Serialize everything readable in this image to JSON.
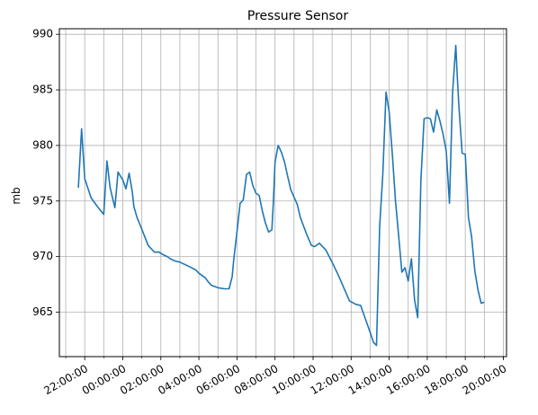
{
  "chart_data": {
    "type": "line",
    "title": "Pressure Sensor",
    "xlabel": "",
    "ylabel": "mb",
    "grid": true,
    "legend": "none",
    "colors": {
      "line": "#1f77b4",
      "grid": "#b0b0b0",
      "axis": "#000000"
    },
    "xlim": [
      "20:40:00",
      "44:10:00"
    ],
    "ylim": [
      961.0,
      990.5
    ],
    "x_ticks": [
      {
        "value": "22:00:00",
        "label": "22:00:00"
      },
      {
        "value": "24:00:00",
        "label": "00:00:00"
      },
      {
        "value": "26:00:00",
        "label": "02:00:00"
      },
      {
        "value": "28:00:00",
        "label": "04:00:00"
      },
      {
        "value": "30:00:00",
        "label": "06:00:00"
      },
      {
        "value": "32:00:00",
        "label": "08:00:00"
      },
      {
        "value": "34:00:00",
        "label": "10:00:00"
      },
      {
        "value": "36:00:00",
        "label": "12:00:00"
      },
      {
        "value": "38:00:00",
        "label": "14:00:00"
      },
      {
        "value": "40:00:00",
        "label": "16:00:00"
      },
      {
        "value": "42:00:00",
        "label": "18:00:00"
      },
      {
        "value": "44:00:00",
        "label": "20:00:00"
      }
    ],
    "y_ticks": [
      965,
      970,
      975,
      980,
      985,
      990
    ],
    "series": [
      {
        "x": [
          "21:40",
          "21:50",
          "22:00",
          "22:20",
          "22:40",
          "23:00",
          "23:10",
          "23:20",
          "23:35",
          "23:45",
          "24:00",
          "24:10",
          "24:20",
          "24:30",
          "24:35",
          "24:45",
          "24:55",
          "25:05",
          "25:20",
          "25:40",
          "25:55",
          "26:05",
          "26:20",
          "26:30",
          "26:45",
          "27:00",
          "27:30",
          "27:50",
          "28:00",
          "28:20",
          "28:30",
          "28:40",
          "29:00",
          "29:20",
          "29:35",
          "29:45",
          "29:50",
          "30:00",
          "30:10",
          "30:20",
          "30:30",
          "30:40",
          "30:50",
          "31:00",
          "31:10",
          "31:20",
          "31:30",
          "31:40",
          "31:50",
          "31:55",
          "32:00",
          "32:10",
          "32:20",
          "32:30",
          "32:40",
          "32:50",
          "33:10",
          "33:20",
          "33:40",
          "33:55",
          "34:05",
          "34:20",
          "34:40",
          "35:00",
          "35:20",
          "35:40",
          "35:55",
          "36:15",
          "36:30",
          "36:45",
          "37:00",
          "37:10",
          "37:20",
          "37:30",
          "37:40",
          "37:50",
          "38:00",
          "38:10",
          "38:20",
          "38:30",
          "38:40",
          "38:50",
          "39:00",
          "39:10",
          "39:20",
          "39:30",
          "39:40",
          "39:50",
          "40:00",
          "40:10",
          "40:20",
          "40:30",
          "40:40",
          "40:50",
          "41:00",
          "41:10",
          "41:20",
          "41:30",
          "41:35",
          "41:40",
          "41:50",
          "42:00",
          "42:10",
          "42:20",
          "42:30",
          "42:40",
          "42:50",
          "43:00"
        ],
        "y": [
          976.2,
          981.5,
          977.0,
          975.3,
          974.5,
          973.8,
          978.6,
          976.2,
          974.4,
          977.6,
          976.9,
          976.1,
          977.5,
          975.8,
          974.5,
          973.5,
          972.8,
          972.1,
          971.0,
          970.4,
          970.4,
          970.2,
          970.0,
          969.8,
          969.6,
          969.5,
          969.1,
          968.8,
          968.5,
          968.1,
          967.7,
          967.4,
          967.2,
          967.1,
          967.1,
          968.2,
          969.8,
          972.2,
          974.8,
          975.1,
          977.4,
          977.6,
          976.4,
          975.7,
          975.5,
          974.1,
          973.0,
          972.2,
          972.4,
          975.0,
          978.5,
          980.0,
          979.4,
          978.5,
          977.2,
          976.0,
          974.7,
          973.5,
          972.0,
          971.0,
          970.9,
          971.2,
          970.6,
          969.5,
          968.3,
          967.0,
          966.0,
          965.7,
          965.6,
          964.4,
          963.2,
          962.3,
          962.0,
          972.7,
          977.4,
          984.8,
          983.0,
          979.2,
          975.0,
          971.8,
          968.6,
          969.0,
          967.8,
          969.8,
          966.1,
          964.5,
          976.8,
          982.4,
          982.5,
          982.4,
          981.2,
          983.2,
          982.2,
          981.0,
          979.5,
          974.8,
          984.8,
          989.0,
          986.0,
          983.5,
          979.3,
          979.2,
          973.5,
          971.8,
          968.7,
          967.0,
          965.8,
          965.9
        ]
      }
    ]
  }
}
